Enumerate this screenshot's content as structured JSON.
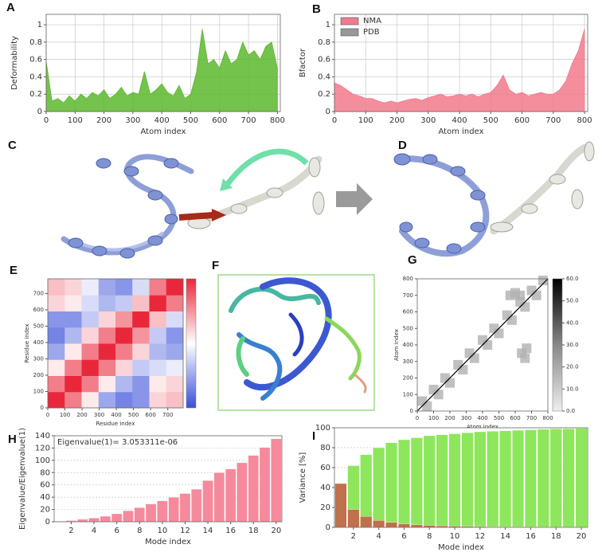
{
  "panels": [
    "C",
    "D",
    "F"
  ],
  "chart_data": [
    {
      "panel": "A",
      "type": "area",
      "x": [
        0,
        20,
        40,
        60,
        80,
        100,
        120,
        140,
        160,
        180,
        200,
        220,
        240,
        260,
        280,
        300,
        320,
        340,
        360,
        380,
        400,
        420,
        440,
        460,
        480,
        500,
        520,
        540,
        560,
        580,
        600,
        620,
        640,
        660,
        680,
        700,
        720,
        740,
        760,
        780,
        800
      ],
      "values": [
        0.58,
        0.12,
        0.15,
        0.1,
        0.18,
        0.12,
        0.2,
        0.15,
        0.22,
        0.18,
        0.25,
        0.15,
        0.2,
        0.28,
        0.18,
        0.22,
        0.2,
        0.46,
        0.2,
        0.25,
        0.32,
        0.22,
        0.18,
        0.3,
        0.15,
        0.2,
        0.45,
        0.95,
        0.55,
        0.6,
        0.5,
        0.7,
        0.55,
        0.6,
        0.8,
        0.65,
        0.7,
        0.6,
        0.75,
        0.8,
        0.5
      ],
      "color": "#5cb82e",
      "xlim": [
        0,
        810
      ],
      "ylim": [
        0,
        1.12
      ],
      "xticks": [
        0,
        100,
        200,
        300,
        400,
        500,
        600,
        700,
        800
      ],
      "yticks": [
        0,
        0.2,
        0.4,
        0.6,
        0.8,
        1
      ],
      "grid": true,
      "xlabel": "Atom index",
      "ylabel": "Deformability"
    },
    {
      "panel": "B",
      "type": "area",
      "x": [
        0,
        20,
        40,
        60,
        80,
        100,
        120,
        140,
        160,
        180,
        200,
        220,
        240,
        260,
        280,
        300,
        320,
        340,
        360,
        380,
        400,
        420,
        440,
        460,
        480,
        500,
        520,
        540,
        560,
        580,
        600,
        620,
        640,
        660,
        680,
        700,
        720,
        740,
        760,
        780,
        800
      ],
      "series": [
        {
          "name": "NMA",
          "color": "#f27a8c",
          "values": [
            0.33,
            0.3,
            0.25,
            0.2,
            0.18,
            0.15,
            0.15,
            0.12,
            0.1,
            0.12,
            0.1,
            0.12,
            0.14,
            0.15,
            0.13,
            0.16,
            0.18,
            0.2,
            0.17,
            0.18,
            0.2,
            0.18,
            0.2,
            0.17,
            0.2,
            0.22,
            0.3,
            0.42,
            0.25,
            0.2,
            0.22,
            0.18,
            0.2,
            0.22,
            0.2,
            0.2,
            0.25,
            0.35,
            0.55,
            0.7,
            0.95
          ]
        },
        {
          "name": "PDB",
          "color": "#999999",
          "values": [
            null,
            null,
            null,
            null,
            null,
            null,
            null,
            null,
            null,
            null,
            null,
            null,
            null,
            null,
            null,
            null,
            null,
            null,
            null,
            null,
            null,
            null,
            null,
            null,
            null,
            null,
            null,
            null,
            null,
            null,
            null,
            null,
            null,
            null,
            null,
            null,
            null,
            null,
            null,
            null,
            null
          ]
        }
      ],
      "legend": "upper left",
      "xlim": [
        0,
        810
      ],
      "ylim": [
        0,
        1.12
      ],
      "xticks": [
        0,
        100,
        200,
        300,
        400,
        500,
        600,
        700,
        800
      ],
      "yticks": [
        0,
        0.2,
        0.4,
        0.6,
        0.8,
        1
      ],
      "grid": true,
      "xlabel": "Atom index",
      "ylabel": "Bfactor"
    },
    {
      "panel": "E",
      "type": "heatmap",
      "z": [
        [
          1,
          0.6,
          0.1,
          -0.5,
          -0.7,
          -0.6,
          0.2,
          0.3
        ],
        [
          0.6,
          1,
          0.6,
          0.1,
          -0.4,
          -0.6,
          0.1,
          0.2
        ],
        [
          0.1,
          0.6,
          1,
          0.6,
          0.2,
          -0.3,
          -0.2,
          -0.1
        ],
        [
          -0.5,
          0.1,
          0.6,
          1,
          0.6,
          0.2,
          -0.4,
          -0.5
        ],
        [
          -0.7,
          -0.4,
          0.2,
          0.6,
          1,
          0.5,
          -0.3,
          -0.6
        ],
        [
          -0.6,
          -0.6,
          -0.3,
          0.2,
          0.5,
          1,
          0.3,
          -0.2
        ],
        [
          0.2,
          0.1,
          -0.2,
          -0.4,
          -0.3,
          0.3,
          1,
          0.6
        ],
        [
          0.3,
          0.2,
          -0.1,
          -0.5,
          -0.6,
          -0.2,
          0.6,
          1
        ]
      ],
      "zlim": [
        -1,
        1
      ],
      "xlim": [
        0,
        790
      ],
      "ylim": [
        0,
        790
      ],
      "xticks": [
        0,
        100,
        200,
        300,
        400,
        500,
        600,
        700
      ],
      "yticks": [
        0,
        100,
        200,
        300,
        400,
        500,
        600,
        700
      ],
      "xlabel": "Residue index",
      "ylabel": "Residue index"
    },
    {
      "panel": "G",
      "type": "scatter",
      "x": [
        30,
        60,
        100,
        130,
        170,
        200,
        250,
        280,
        320,
        350,
        400,
        430,
        470,
        500,
        550,
        580,
        630,
        660,
        700,
        730,
        770,
        570,
        600,
        630,
        640,
        660,
        670
      ],
      "y": [
        60,
        30,
        130,
        100,
        200,
        170,
        280,
        250,
        350,
        320,
        430,
        400,
        500,
        470,
        580,
        550,
        660,
        630,
        730,
        700,
        790,
        700,
        715,
        700,
        350,
        320,
        380
      ],
      "color": "#b0b0b0",
      "xlim": [
        0,
        800
      ],
      "ylim": [
        0,
        800
      ],
      "xticks": [
        0,
        100,
        200,
        300,
        400,
        500,
        600,
        700,
        800
      ],
      "yticks": [
        0,
        100,
        200,
        300,
        400,
        500,
        600,
        700,
        800
      ],
      "clim": [
        0,
        60
      ],
      "cticks": [
        {
          "value": 0,
          "label": "0.0"
        },
        {
          "value": 10,
          "label": "10.0"
        },
        {
          "value": 20,
          "label": "20.0"
        },
        {
          "value": 30,
          "label": "30.0"
        },
        {
          "value": 40,
          "label": "40.0"
        },
        {
          "value": 50,
          "label": "50.0"
        },
        {
          "value": 60,
          "label": "60.0"
        }
      ],
      "xlabel": "Atom index",
      "ylabel": "Atom index"
    },
    {
      "panel": "H",
      "type": "bar",
      "x": [
        1,
        2,
        3,
        4,
        5,
        6,
        7,
        8,
        9,
        10,
        11,
        12,
        13,
        14,
        15,
        16,
        17,
        18,
        19,
        20
      ],
      "values": [
        1,
        2,
        4,
        6,
        9,
        13,
        18,
        23,
        29,
        34,
        40,
        46,
        53,
        67,
        80,
        86,
        96,
        108,
        121,
        135
      ],
      "color": "#f58a9c",
      "xlim": [
        0.5,
        20.5
      ],
      "ylim": [
        0,
        140
      ],
      "xticks": [
        2,
        4,
        6,
        8,
        10,
        12,
        14,
        16,
        18,
        20
      ],
      "yticks": [
        0,
        20,
        40,
        60,
        80,
        100,
        120,
        140
      ],
      "grid": true,
      "annotation": "Eigenvalue(1)= 3.053311e-06",
      "xlabel": "Mode index",
      "ylabel": "Eigenvalue/Eigenvalue(1)"
    },
    {
      "panel": "I",
      "type": "bar",
      "x": [
        1,
        2,
        3,
        4,
        5,
        6,
        7,
        8,
        9,
        10,
        11,
        12,
        13,
        14,
        15,
        16,
        17,
        18,
        19,
        20
      ],
      "series": [
        {
          "color": "#8ee65c",
          "values": [
            44,
            62,
            73,
            80,
            85,
            88,
            90,
            92,
            93,
            94,
            95,
            96,
            96.5,
            97,
            97.5,
            98,
            98.5,
            99,
            99,
            99.5
          ]
        },
        {
          "color": "#c0704a",
          "values": [
            44,
            18,
            11,
            7,
            5,
            3.5,
            2.5,
            2,
            1.5,
            1.2,
            1,
            0.8,
            0.6,
            0.5,
            0.5,
            0.4,
            0.4,
            0.3,
            0.3,
            0.3
          ]
        }
      ],
      "xlim": [
        0.5,
        20.5
      ],
      "ylim": [
        0,
        100
      ],
      "xticks": [
        2,
        4,
        6,
        8,
        10,
        12,
        14,
        16,
        18,
        20
      ],
      "yticks": [
        0,
        20,
        40,
        60,
        80,
        100
      ],
      "grid": true,
      "xlabel": "Mode index",
      "ylabel": "Variance [%]"
    }
  ]
}
